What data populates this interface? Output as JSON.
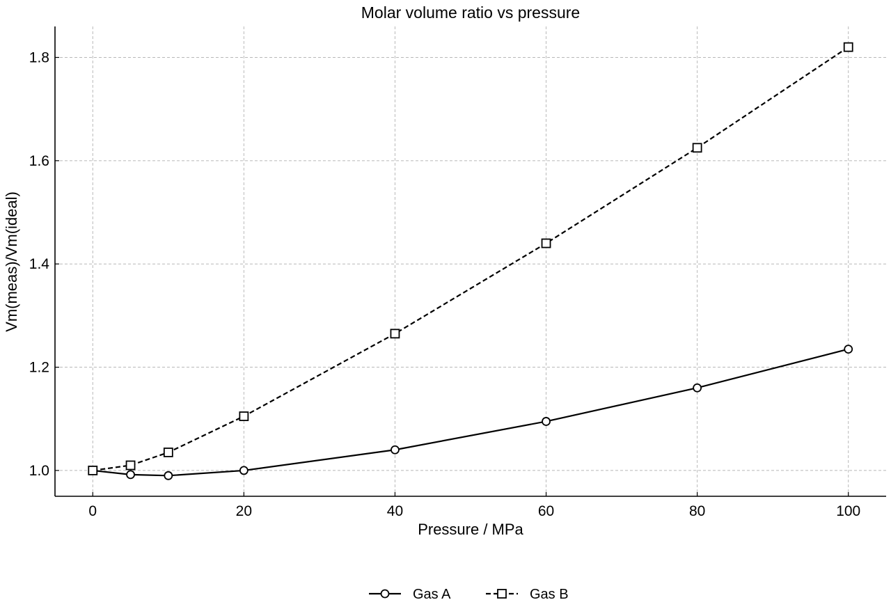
{
  "chart_data": {
    "type": "line",
    "title": "Molar volume ratio vs pressure",
    "xlabel": "Pressure / MPa",
    "ylabel": "Vm(meas)/Vm(ideal)",
    "xlim": [
      -5,
      105
    ],
    "ylim": [
      0.95,
      1.86
    ],
    "xticks": [
      0,
      20,
      40,
      60,
      80,
      100
    ],
    "yticks": [
      1.0,
      1.2,
      1.4,
      1.6,
      1.8
    ],
    "xtick_labels": [
      "0",
      "20",
      "40",
      "60",
      "80",
      "100"
    ],
    "ytick_labels": [
      "1.0",
      "1.2",
      "1.4",
      "1.6",
      "1.8"
    ],
    "grid": true,
    "legend_position": "bottom-center",
    "series": [
      {
        "name": "Gas A",
        "line_style": "solid",
        "marker": "circle",
        "color": "#000000",
        "x": [
          0,
          5,
          10,
          20,
          40,
          60,
          80,
          100
        ],
        "y": [
          1.0,
          0.992,
          0.99,
          1.0,
          1.04,
          1.095,
          1.16,
          1.235
        ]
      },
      {
        "name": "Gas B",
        "line_style": "dashed",
        "marker": "square",
        "color": "#000000",
        "x": [
          0,
          5,
          10,
          20,
          40,
          60,
          80,
          100
        ],
        "y": [
          1.0,
          1.01,
          1.035,
          1.105,
          1.265,
          1.44,
          1.625,
          1.82
        ]
      }
    ]
  }
}
